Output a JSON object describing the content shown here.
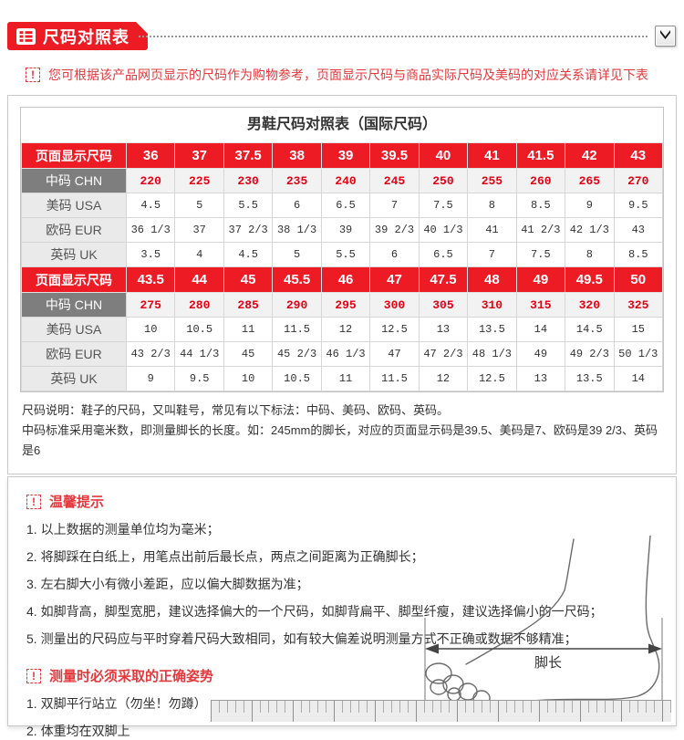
{
  "header": {
    "title": "尺码对照表"
  },
  "notice": "您可根据该产品网页显示的尺码作为购物参考，页面显示尺码与商品实际尺码及美码的对应关系请详见下表",
  "table": {
    "title": "男鞋尺码对照表（国际尺码）",
    "rows": [
      {
        "label": "页面显示尺码",
        "type": "red",
        "values": [
          "36",
          "37",
          "37.5",
          "38",
          "39",
          "39.5",
          "40",
          "41",
          "41.5",
          "42",
          "43"
        ]
      },
      {
        "label": "中码 CHN",
        "type": "chn",
        "values": [
          "220",
          "225",
          "230",
          "235",
          "240",
          "245",
          "250",
          "255",
          "260",
          "265",
          "270"
        ]
      },
      {
        "label": "美码 USA",
        "type": "plain",
        "values": [
          "4.5",
          "5",
          "5.5",
          "6",
          "6.5",
          "7",
          "7.5",
          "8",
          "8.5",
          "9",
          "9.5"
        ]
      },
      {
        "label": "欧码 EUR",
        "type": "plain",
        "values": [
          "36 1/3",
          "37",
          "37 2/3",
          "38 1/3",
          "39",
          "39 2/3",
          "40 1/3",
          "41",
          "41 2/3",
          "42 1/3",
          "43"
        ]
      },
      {
        "label": "英码 UK",
        "type": "plain",
        "values": [
          "3.5",
          "4",
          "4.5",
          "5",
          "5.5",
          "6",
          "6.5",
          "7",
          "7.5",
          "8",
          "8.5"
        ]
      },
      {
        "label": "页面显示尺码",
        "type": "red",
        "values": [
          "43.5",
          "44",
          "45",
          "45.5",
          "46",
          "47",
          "47.5",
          "48",
          "49",
          "49.5",
          "50"
        ]
      },
      {
        "label": "中码 CHN",
        "type": "chn",
        "values": [
          "275",
          "280",
          "285",
          "290",
          "295",
          "300",
          "305",
          "310",
          "315",
          "320",
          "325"
        ]
      },
      {
        "label": "美码 USA",
        "type": "plain",
        "values": [
          "10",
          "10.5",
          "11",
          "11.5",
          "12",
          "12.5",
          "13",
          "13.5",
          "14",
          "14.5",
          "15"
        ]
      },
      {
        "label": "欧码 EUR",
        "type": "plain",
        "values": [
          "43 2/3",
          "44 1/3",
          "45",
          "45 2/3",
          "46 1/3",
          "47",
          "47 2/3",
          "48 1/3",
          "49",
          "49 2/3",
          "50 1/3"
        ]
      },
      {
        "label": "英码 UK",
        "type": "plain",
        "values": [
          "9",
          "9.5",
          "10",
          "10.5",
          "11",
          "11.5",
          "12",
          "12.5",
          "13",
          "13.5",
          "14"
        ]
      }
    ],
    "footnote_line1": "尺码说明：鞋子的尺码，又叫鞋号，常见有以下标法：中码、美码、欧码、英码。",
    "footnote_line2": "中码标准采用毫米数，即测量脚长的长度。如：245mm的脚长，对应的页面显示码是39.5、美码是7、欧码是39 2/3、英码是6"
  },
  "tips": {
    "title": "温馨提示",
    "items": [
      "1. 以上数据的测量单位均为毫米；",
      "2. 将脚踩在白纸上，用笔点出前后最长点，两点之间距离为正确脚长；",
      "3. 左右脚大小有微小差距，应以偏大脚数据为准；",
      "4. 如脚背高，脚型宽肥，建议选择偏大的一个尺码，如脚背扁平、脚型纤瘦，建议选择偏小的一尺码；",
      "5. 测量出的尺码应与平时穿着尺码大致相同，如有较大偏差说明测量方式不正确或数据不够精准；"
    ]
  },
  "posture": {
    "title": "测量时必须采取的正确姿势",
    "items": [
      "1. 双脚平行站立（勿坐！勿蹲）",
      "2. 体重均在双脚上"
    ]
  },
  "diagram": {
    "foot_length_label": "脚长"
  },
  "icons": {
    "warn": "!",
    "list": "list-icon",
    "collapse": "chevron-down-icon"
  },
  "colors": {
    "brand_red": "#ed1c24",
    "text_red": "#e4393c",
    "value_red": "#e60012",
    "chn_label_bg": "#7e7e7e",
    "label_bg": "#eaeaea",
    "chn_cell_bg": "#f2f2f2",
    "border_gray": "#c9c9c9"
  }
}
